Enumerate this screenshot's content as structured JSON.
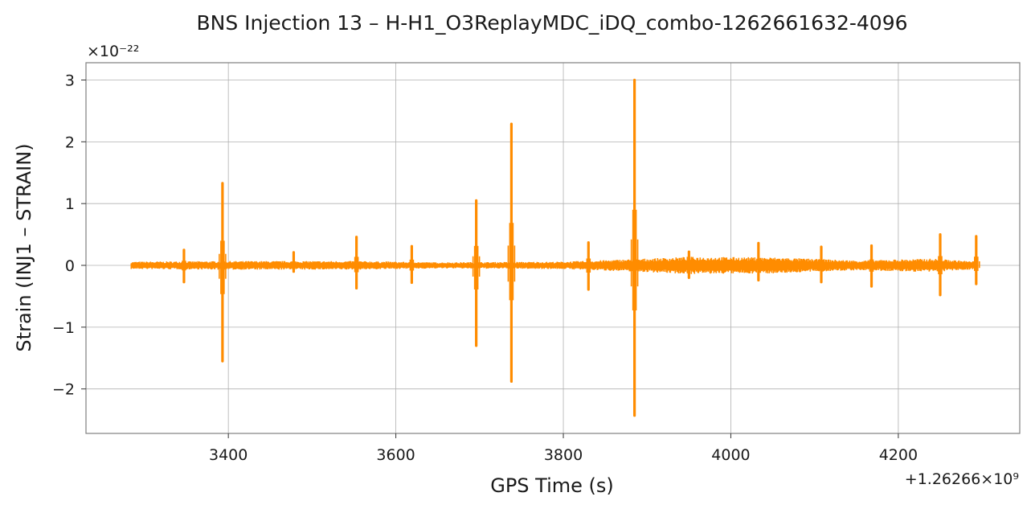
{
  "chart_data": {
    "type": "line",
    "title": "BNS Injection 13 – H-H1_O3ReplayMDC_iDQ_combo-1262661632-4096",
    "xlabel": "GPS Time (s)",
    "ylabel": "Strain (INJ1 – STRAIN)",
    "x_offset_label": "+1.26266×10⁹",
    "y_scale_label": "×10⁻²²",
    "xlim": [
      3230,
      4345
    ],
    "ylim": [
      -2.72,
      3.28
    ],
    "x_ticks": [
      3400,
      3600,
      3800,
      4000,
      4200
    ],
    "x_tick_labels": [
      "3400",
      "3600",
      "3800",
      "4000",
      "4200"
    ],
    "y_ticks": [
      -2,
      -1,
      0,
      1,
      2,
      3
    ],
    "y_tick_labels": [
      "−2",
      "−1",
      "0",
      "1",
      "2",
      "3"
    ],
    "grid": true,
    "series": [
      {
        "color": "#ff8c00",
        "x_range": [
          3284,
          4295
        ],
        "baseline_envelope": [
          {
            "x": 3284,
            "amp": 0.06
          },
          {
            "x": 3400,
            "amp": 0.07
          },
          {
            "x": 3550,
            "amp": 0.07
          },
          {
            "x": 3650,
            "amp": 0.05
          },
          {
            "x": 3800,
            "amp": 0.06
          },
          {
            "x": 3900,
            "amp": 0.11
          },
          {
            "x": 3950,
            "amp": 0.14
          },
          {
            "x": 4050,
            "amp": 0.13
          },
          {
            "x": 4150,
            "amp": 0.08
          },
          {
            "x": 4240,
            "amp": 0.11
          },
          {
            "x": 4295,
            "amp": 0.06
          }
        ],
        "glitches": [
          {
            "x": 3347,
            "max": 0.25,
            "min": -0.27
          },
          {
            "x": 3393,
            "max": 1.33,
            "min": -1.55
          },
          {
            "x": 3478,
            "max": 0.21,
            "min": -0.1
          },
          {
            "x": 3553,
            "max": 0.46,
            "min": -0.37
          },
          {
            "x": 3619,
            "max": 0.31,
            "min": -0.28
          },
          {
            "x": 3696,
            "max": 1.05,
            "min": -1.3
          },
          {
            "x": 3738,
            "max": 2.29,
            "min": -1.88
          },
          {
            "x": 3830,
            "max": 0.37,
            "min": -0.39
          },
          {
            "x": 3885,
            "max": 3.0,
            "min": -2.43
          },
          {
            "x": 3950,
            "max": 0.22,
            "min": -0.2
          },
          {
            "x": 4033,
            "max": 0.36,
            "min": -0.24
          },
          {
            "x": 4108,
            "max": 0.3,
            "min": -0.27
          },
          {
            "x": 4168,
            "max": 0.32,
            "min": -0.34
          },
          {
            "x": 4250,
            "max": 0.5,
            "min": -0.48
          },
          {
            "x": 4293,
            "max": 0.47,
            "min": -0.3
          }
        ]
      }
    ]
  }
}
